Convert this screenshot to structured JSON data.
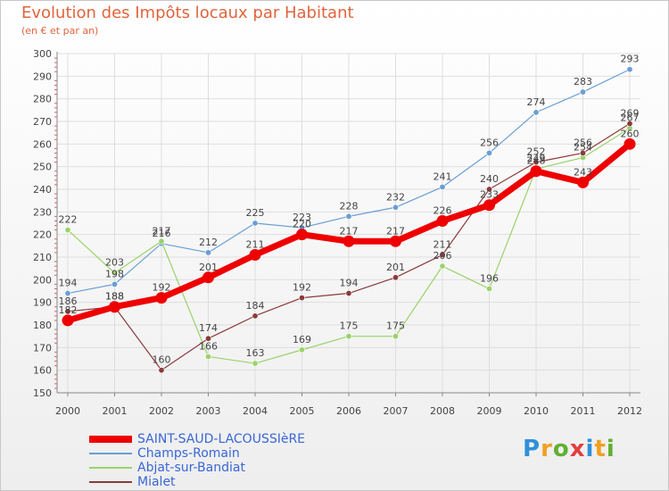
{
  "header": {
    "title": "Evolution des Impôts locaux par Habitant",
    "subtitle": "(en € et par an)"
  },
  "logo": {
    "text": "Proxiti",
    "letters": [
      "P",
      "r",
      "o",
      "x",
      "i",
      "t",
      "i"
    ],
    "colors": [
      "#2f8fd8",
      "#f0a020",
      "#60b030",
      "#e04040",
      "#2f8fd8",
      "#f0a020",
      "#60b030"
    ]
  },
  "chart_data": {
    "type": "line",
    "title": "Evolution des Impôts locaux par Habitant",
    "subtitle": "(en € et par an)",
    "xlabel": "",
    "ylabel": "",
    "categories": [
      "2000",
      "2001",
      "2002",
      "2003",
      "2004",
      "2005",
      "2006",
      "2007",
      "2008",
      "2009",
      "2010",
      "2011",
      "2012"
    ],
    "ylim": [
      150,
      300
    ],
    "yticks": [
      150,
      160,
      170,
      180,
      190,
      200,
      210,
      220,
      230,
      240,
      250,
      260,
      270,
      280,
      290,
      300
    ],
    "grid": true,
    "legend_position": "bottom-left",
    "series": [
      {
        "name": "SAINT-SAUD-LACOUSSIèRE",
        "color": "#ee0000",
        "values": [
          182,
          188,
          192,
          201,
          211,
          220,
          217,
          217,
          226,
          233,
          248,
          243,
          260
        ]
      },
      {
        "name": "Champs-Romain",
        "color": "#6a9ed4",
        "values": [
          194,
          198,
          216,
          212,
          225,
          223,
          228,
          232,
          241,
          256,
          274,
          283,
          293
        ]
      },
      {
        "name": "Abjat-sur-Bandiat",
        "color": "#99d36a",
        "values": [
          222,
          203,
          217,
          166,
          163,
          169,
          175,
          175,
          206,
          196,
          249,
          254,
          267
        ]
      },
      {
        "name": "Mialet",
        "color": "#8b3a3a",
        "values": [
          186,
          188,
          160,
          174,
          184,
          192,
          194,
          201,
          211,
          240,
          252,
          256,
          269
        ]
      }
    ]
  }
}
